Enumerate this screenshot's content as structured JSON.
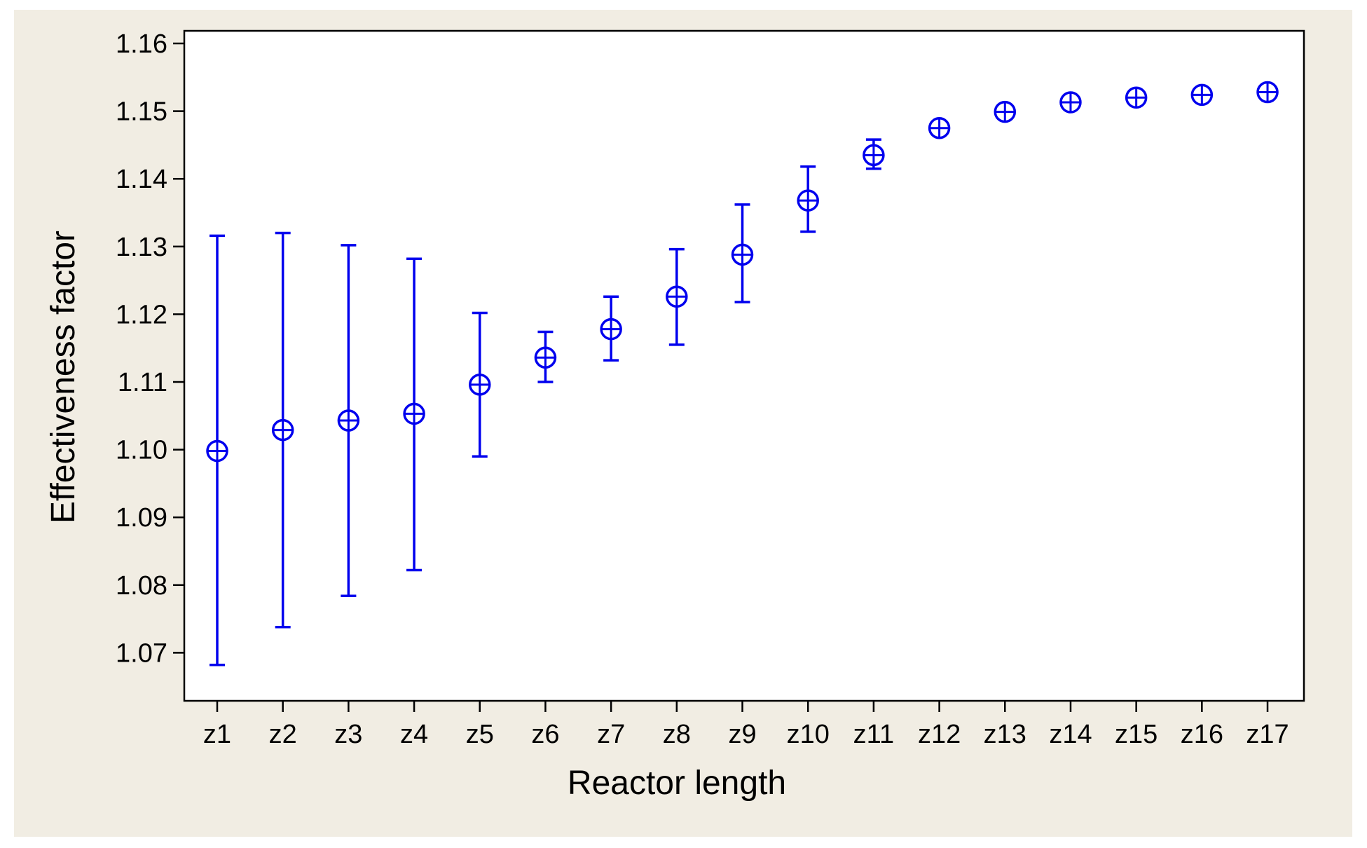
{
  "chart_data": {
    "type": "scatter",
    "title": "",
    "xlabel": "Reactor length",
    "ylabel": "Effectiveness factor",
    "categories": [
      "z1",
      "z2",
      "z3",
      "z4",
      "z5",
      "z6",
      "z7",
      "z8",
      "z9",
      "z10",
      "z11",
      "z12",
      "z13",
      "z14",
      "z15",
      "z16",
      "z17"
    ],
    "series": [
      {
        "values": [
          1.0998,
          1.1029,
          1.1043,
          1.1053,
          1.1096,
          1.1136,
          1.1178,
          1.1226,
          1.1288,
          1.1368,
          1.1435,
          1.1475,
          1.1499,
          1.1513,
          1.152,
          1.1524,
          1.1528
        ],
        "lower": [
          1.0682,
          1.0738,
          1.0784,
          1.0822,
          1.099,
          1.11,
          1.1132,
          1.1155,
          1.1218,
          1.1322,
          1.1415,
          1.147,
          1.1496,
          1.151,
          1.1518,
          1.1522,
          1.1526
        ],
        "upper": [
          1.1316,
          1.132,
          1.1302,
          1.1282,
          1.1202,
          1.1174,
          1.1226,
          1.1296,
          1.1362,
          1.1418,
          1.1458,
          1.1482,
          1.1503,
          1.1517,
          1.1523,
          1.1527,
          1.1531
        ]
      }
    ],
    "y_ticks": [
      "1.07",
      "1.08",
      "1.09",
      "1.10",
      "1.11",
      "1.12",
      "1.13",
      "1.14",
      "1.15",
      "1.16"
    ],
    "ylim": [
      1.063,
      1.1615
    ],
    "grid": false,
    "legend": "none",
    "colors": {
      "marker": "#0000ee",
      "background": "#f1ede3",
      "plot": "#ffffff",
      "axis": "#000000"
    }
  }
}
